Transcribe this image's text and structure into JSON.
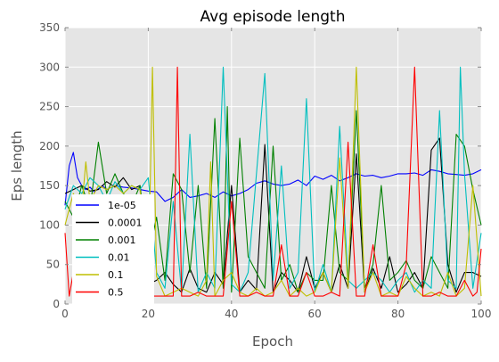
{
  "chart_data": {
    "type": "line",
    "title": "Avg episode length",
    "xlabel": "Epoch",
    "ylabel": "Eps length",
    "xlim": [
      0,
      100
    ],
    "ylim": [
      0,
      350
    ],
    "x_ticks": [
      0,
      20,
      40,
      60,
      80,
      100
    ],
    "y_ticks": [
      0,
      50,
      100,
      150,
      200,
      250,
      300,
      350
    ],
    "grid": true,
    "background": "#e5e5e5",
    "legend": {
      "position": "left"
    },
    "series": [
      {
        "name": "1e-05",
        "color": "#0000ff",
        "x": [
          0,
          1,
          2,
          3,
          4,
          5,
          6,
          7,
          8,
          9,
          10,
          12,
          14,
          16,
          18,
          20,
          22,
          24,
          26,
          28,
          30,
          32,
          34,
          36,
          38,
          40,
          42,
          44,
          46,
          48,
          50,
          52,
          54,
          56,
          58,
          60,
          62,
          64,
          66,
          68,
          70,
          72,
          74,
          76,
          78,
          80,
          82,
          84,
          86,
          88,
          90,
          92,
          94,
          96,
          98,
          100
        ],
        "y": [
          125,
          175,
          192,
          160,
          150,
          145,
          148,
          142,
          146,
          150,
          145,
          150,
          148,
          147,
          145,
          143,
          142,
          130,
          135,
          145,
          135,
          137,
          140,
          135,
          142,
          137,
          140,
          145,
          153,
          156,
          152,
          150,
          152,
          157,
          150,
          162,
          158,
          163,
          156,
          160,
          165,
          162,
          163,
          160,
          162,
          165,
          165,
          166,
          163,
          170,
          168,
          165,
          164,
          163,
          165,
          170
        ]
      },
      {
        "name": "0.0001",
        "color": "#000000",
        "x": [
          0,
          2,
          4,
          6,
          8,
          10,
          12,
          14,
          16,
          18,
          20,
          22,
          24,
          26,
          28,
          30,
          32,
          34,
          36,
          38,
          40,
          42,
          44,
          46,
          48,
          50,
          52,
          54,
          56,
          58,
          60,
          62,
          64,
          66,
          68,
          70,
          72,
          74,
          76,
          78,
          80,
          82,
          84,
          86,
          88,
          90,
          92,
          94,
          96,
          98,
          100
        ],
        "y": [
          140,
          145,
          150,
          143,
          145,
          155,
          148,
          160,
          145,
          150,
          25,
          30,
          40,
          25,
          15,
          45,
          20,
          15,
          40,
          25,
          150,
          15,
          30,
          18,
          202,
          15,
          40,
          30,
          15,
          60,
          20,
          40,
          15,
          50,
          20,
          190,
          15,
          45,
          20,
          60,
          15,
          25,
          40,
          20,
          195,
          210,
          50,
          15,
          40,
          40,
          35
        ]
      },
      {
        "name": "0.001",
        "color": "#008000",
        "x": [
          0,
          2,
          4,
          6,
          8,
          10,
          12,
          14,
          16,
          18,
          20,
          22,
          24,
          26,
          28,
          30,
          32,
          34,
          36,
          38,
          39,
          40,
          42,
          44,
          46,
          48,
          50,
          52,
          54,
          56,
          58,
          60,
          62,
          64,
          66,
          68,
          70,
          72,
          74,
          76,
          78,
          80,
          82,
          84,
          86,
          88,
          90,
          92,
          94,
          96,
          98,
          100
        ],
        "y": [
          130,
          110,
          150,
          120,
          205,
          140,
          165,
          140,
          125,
          150,
          60,
          110,
          30,
          165,
          145,
          40,
          150,
          20,
          235,
          20,
          250,
          15,
          210,
          60,
          40,
          20,
          200,
          30,
          50,
          15,
          40,
          30,
          30,
          150,
          40,
          30,
          245,
          20,
          50,
          150,
          30,
          40,
          55,
          30,
          20,
          60,
          40,
          20,
          215,
          200,
          145,
          100
        ]
      },
      {
        "name": "0.01",
        "color": "#00bfbf",
        "x": [
          0,
          2,
          4,
          6,
          8,
          10,
          12,
          14,
          16,
          18,
          20,
          22,
          24,
          26,
          28,
          30,
          32,
          34,
          36,
          38,
          40,
          42,
          44,
          46,
          48,
          50,
          52,
          54,
          56,
          58,
          60,
          62,
          64,
          66,
          68,
          70,
          72,
          74,
          76,
          78,
          80,
          82,
          84,
          86,
          88,
          90,
          92,
          94,
          95,
          96,
          98,
          100
        ],
        "y": [
          120,
          150,
          140,
          160,
          150,
          130,
          155,
          140,
          150,
          145,
          160,
          40,
          20,
          130,
          15,
          215,
          15,
          40,
          20,
          300,
          25,
          15,
          40,
          165,
          292,
          30,
          175,
          20,
          40,
          260,
          15,
          50,
          15,
          225,
          30,
          20,
          30,
          40,
          30,
          15,
          30,
          40,
          15,
          30,
          20,
          245,
          30,
          20,
          300,
          165,
          20,
          90
        ]
      },
      {
        "name": "0.1",
        "color": "#bfbf00",
        "x": [
          0,
          2,
          4,
          5,
          6,
          8,
          10,
          12,
          14,
          16,
          18,
          20,
          21,
          22,
          24,
          26,
          28,
          30,
          32,
          34,
          35,
          36,
          38,
          40,
          42,
          44,
          46,
          48,
          50,
          52,
          54,
          56,
          58,
          60,
          62,
          64,
          66,
          68,
          70,
          72,
          74,
          76,
          78,
          80,
          82,
          84,
          86,
          88,
          90,
          92,
          94,
          96,
          98,
          100
        ],
        "y": [
          100,
          140,
          120,
          180,
          130,
          150,
          145,
          150,
          140,
          150,
          145,
          20,
          300,
          35,
          10,
          15,
          20,
          15,
          10,
          30,
          180,
          10,
          30,
          40,
          15,
          10,
          20,
          10,
          15,
          30,
          10,
          20,
          10,
          15,
          40,
          15,
          185,
          20,
          300,
          15,
          40,
          10,
          15,
          10,
          35,
          20,
          10,
          15,
          10,
          40,
          10,
          20,
          150,
          10
        ]
      },
      {
        "name": "0.5",
        "color": "#ff0000",
        "x": [
          0,
          1,
          2,
          4,
          6,
          8,
          10,
          12,
          14,
          16,
          18,
          20,
          22,
          24,
          26,
          27,
          28,
          30,
          32,
          34,
          36,
          38,
          40,
          42,
          44,
          46,
          48,
          50,
          52,
          54,
          56,
          58,
          60,
          62,
          64,
          66,
          68,
          70,
          72,
          74,
          76,
          78,
          80,
          82,
          84,
          86,
          88,
          90,
          92,
          94,
          96,
          98,
          99,
          100
        ],
        "y": [
          90,
          10,
          40,
          20,
          15,
          10,
          15,
          10,
          20,
          10,
          15,
          10,
          10,
          10,
          10,
          300,
          10,
          10,
          15,
          10,
          10,
          10,
          130,
          10,
          10,
          15,
          10,
          10,
          75,
          10,
          10,
          40,
          10,
          10,
          15,
          10,
          205,
          10,
          10,
          75,
          10,
          10,
          10,
          50,
          300,
          10,
          10,
          15,
          10,
          10,
          30,
          10,
          15,
          70
        ]
      }
    ]
  }
}
